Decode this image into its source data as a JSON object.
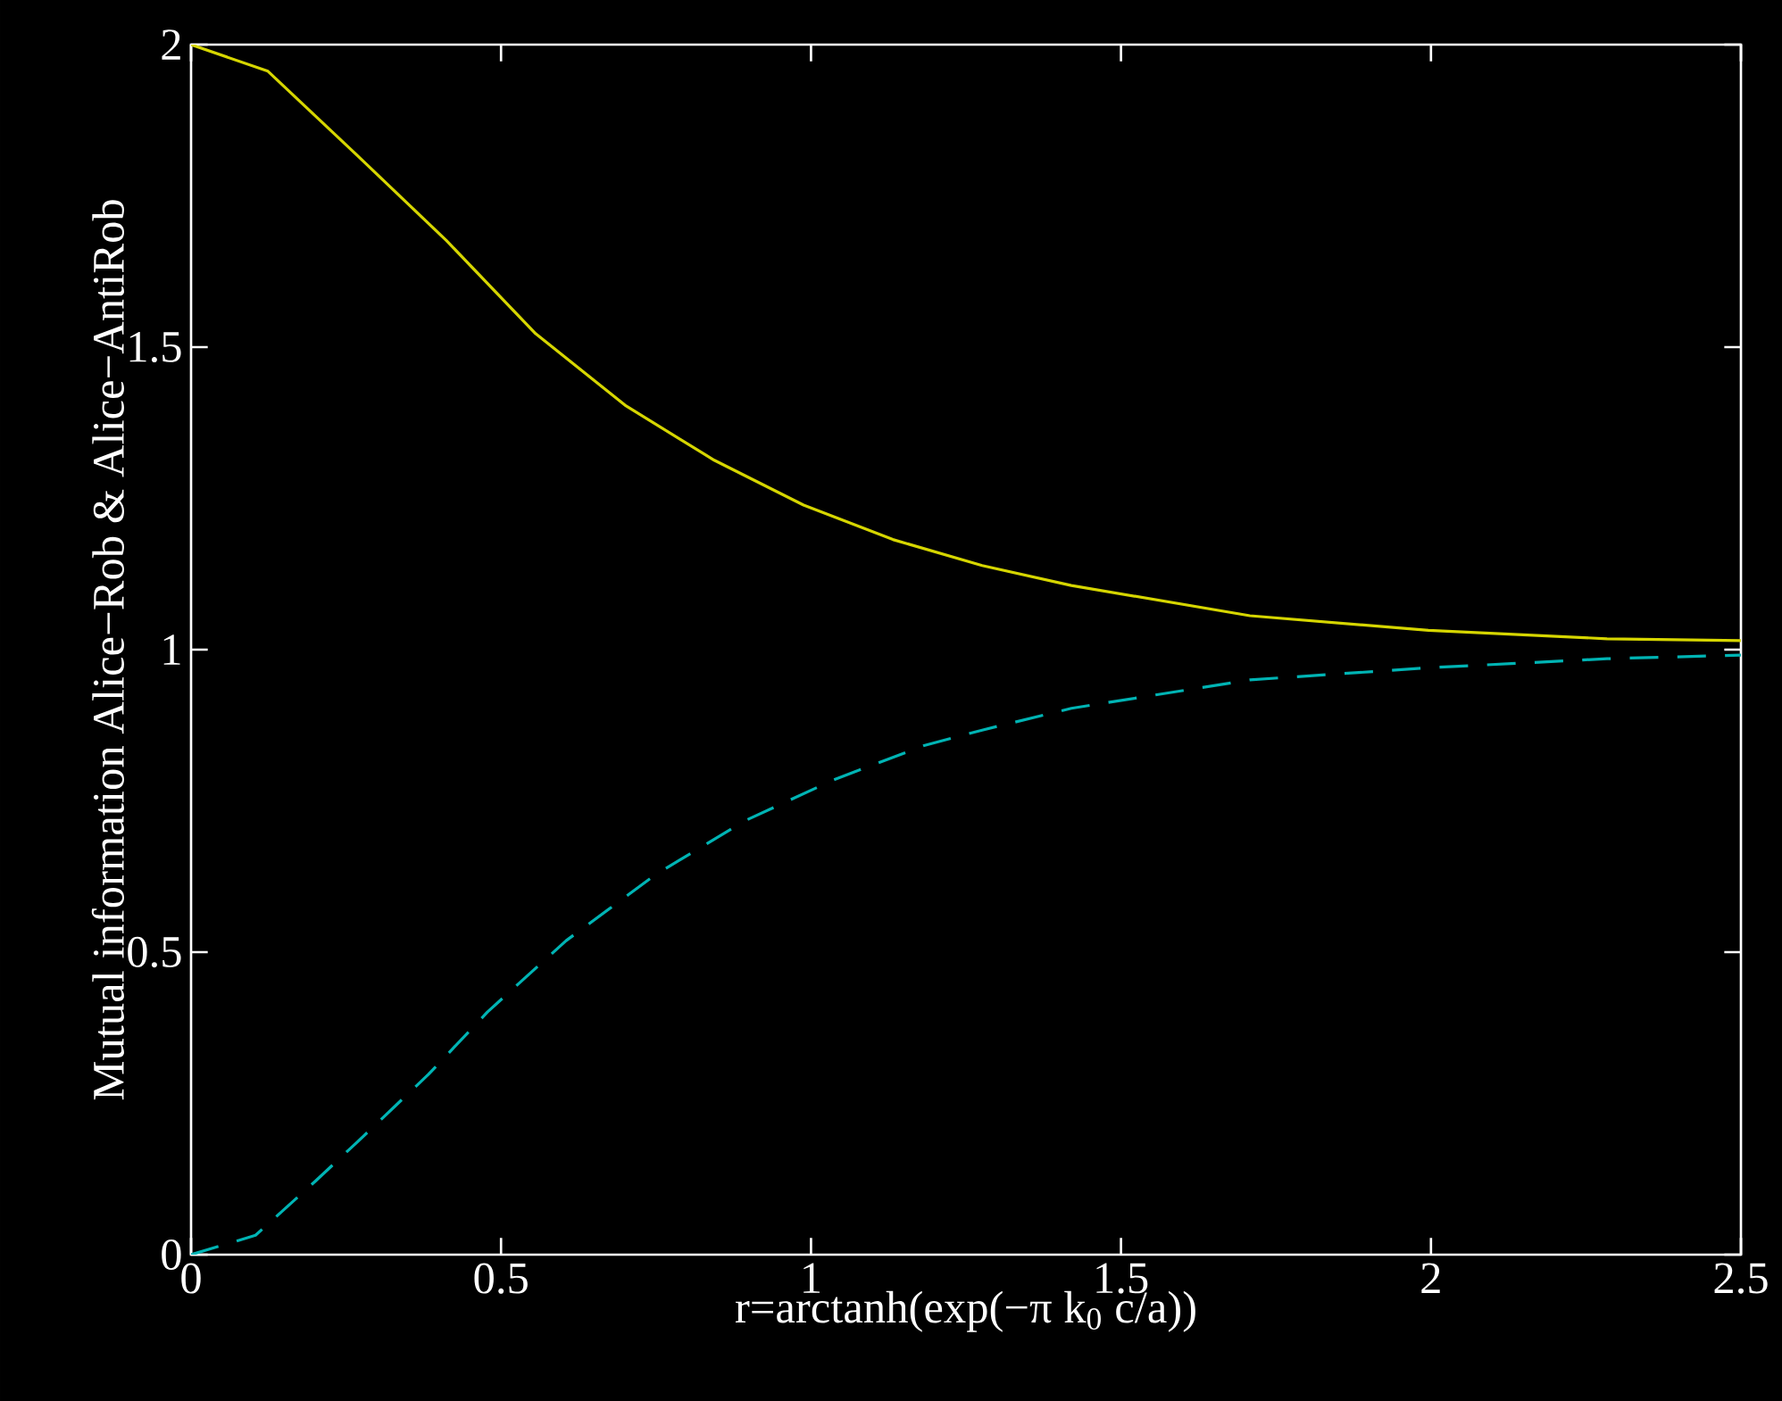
{
  "chart_data": {
    "type": "line",
    "xlabel": "r=arctanh(exp(−π k$_{0}$ c/a))",
    "ylabel": "Mutual information Alice−Rob & Alice−AntiRob",
    "xlim": [
      0,
      2.5
    ],
    "ylim": [
      0,
      2
    ],
    "xticks": [
      0,
      0.5,
      1,
      1.5,
      2,
      2.5
    ],
    "yticks": [
      0,
      0.5,
      1,
      1.5,
      2
    ],
    "grid": false,
    "series": [
      {
        "color": "#d6d600",
        "line_style": "solid",
        "x": [
          0,
          0.124,
          0.268,
          0.412,
          0.556,
          0.7,
          0.844,
          0.988,
          1.132,
          1.276,
          1.42,
          1.708,
          1.996,
          2.284,
          2.5
        ],
        "values": [
          2.0,
          1.956,
          1.817,
          1.676,
          1.522,
          1.404,
          1.313,
          1.239,
          1.182,
          1.139,
          1.106,
          1.056,
          1.032,
          1.018,
          1.015
        ]
      },
      {
        "color": "#00b4b4",
        "line_style": "dashed",
        "x": [
          0,
          0.104,
          0.2,
          0.268,
          0.383,
          0.478,
          0.605,
          0.749,
          0.893,
          1.037,
          1.181,
          1.276,
          1.42,
          1.708,
          1.996,
          2.284,
          2.5
        ],
        "values": [
          0,
          0.032,
          0.121,
          0.186,
          0.298,
          0.401,
          0.519,
          0.628,
          0.717,
          0.785,
          0.841,
          0.867,
          0.903,
          0.95,
          0.97,
          0.985,
          0.991
        ]
      }
    ]
  }
}
